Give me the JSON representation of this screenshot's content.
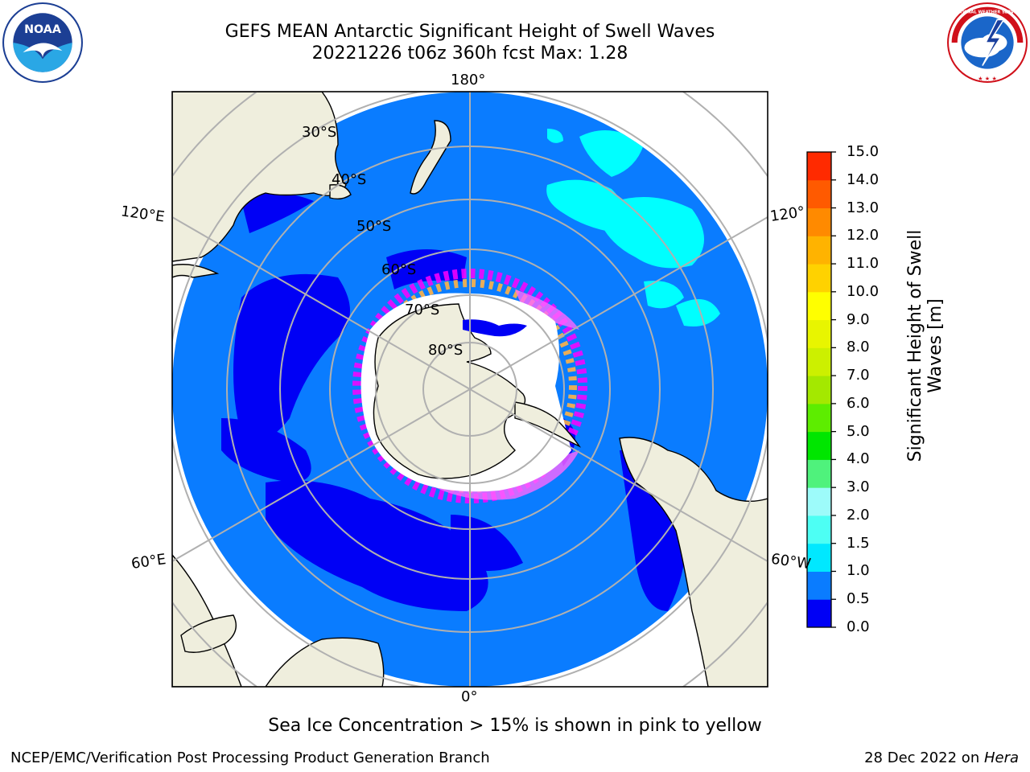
{
  "header": {
    "title_line1": "GEFS MEAN Antarctic Significant Height of Swell Waves",
    "title_line2": "20221226 t06z 360h fcst   Max: 1.28"
  },
  "logos": {
    "left": {
      "name": "noaa-logo",
      "text": "NOAA"
    },
    "right": {
      "name": "nws-logo",
      "text": "NATIONAL WEATHER SERVICE"
    }
  },
  "map": {
    "projection": "south-polar-stereographic",
    "lon_labels": {
      "top": "180°",
      "left_upper": "120°E",
      "right_upper": "120°",
      "left_lower": "60°E",
      "right_lower": "60°W",
      "bottom": "0°"
    },
    "lat_labels": [
      "30°S",
      "40°S",
      "50°S",
      "60°S",
      "70°S",
      "80°S"
    ],
    "colors": {
      "ocean_main": "#0a7cff",
      "ocean_low": "#0000f5",
      "land": "#efeedd",
      "ice": "#ffffff",
      "grid": "#b0b0b0",
      "swell_high": "#00ffff"
    }
  },
  "colorbar": {
    "label": "Significant Height of Swell Waves [m]",
    "label_line1": "Significant Height of Swell",
    "label_line2": "Waves [m]",
    "ticks": [
      "0.0",
      "0.5",
      "1.0",
      "1.5",
      "2.0",
      "3.0",
      "4.0",
      "5.0",
      "6.0",
      "7.0",
      "8.0",
      "9.0",
      "10.0",
      "11.0",
      "12.0",
      "13.0",
      "14.0",
      "15.0"
    ],
    "colors": [
      "#0000f5",
      "#0a7cff",
      "#00e8ff",
      "#4dfff4",
      "#9dfbfa",
      "#4ff27c",
      "#00e600",
      "#5ded00",
      "#a4e800",
      "#ccf000",
      "#e8f500",
      "#ffff00",
      "#ffd200",
      "#ffb300",
      "#ff8a00",
      "#ff5a00",
      "#ff2a00"
    ]
  },
  "note": "Sea Ice Concentration > 15% is shown in pink to yellow",
  "footer": {
    "left": "NCEP/EMC/Verification Post Processing Product Generation Branch",
    "right_prefix": "28 Dec 2022 on ",
    "right_machine": "Hera"
  }
}
